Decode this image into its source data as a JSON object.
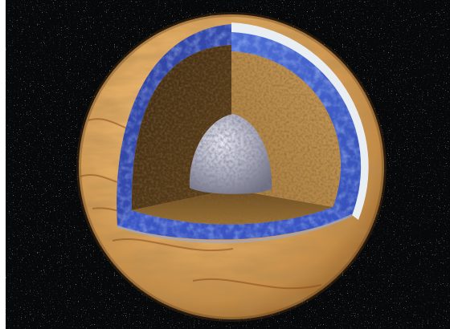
{
  "image": {
    "subject": "cutaway-planetary-body",
    "colors": {
      "space": "#07080a",
      "surface_light": "#e2b06a",
      "surface_mid": "#c99551",
      "surface_dark": "#8d5a26",
      "ice_shell": "#e9eef3",
      "ocean_light": "#5a78d8",
      "ocean_dark": "#2b3fa0",
      "mantle_light": "#c99a56",
      "mantle_dark": "#4d3517",
      "core_light": "#dadbe6",
      "core_dark": "#7a7b8c"
    },
    "layers": [
      "ice-shell",
      "ocean-layer",
      "rocky-mantle",
      "metallic-core"
    ]
  }
}
